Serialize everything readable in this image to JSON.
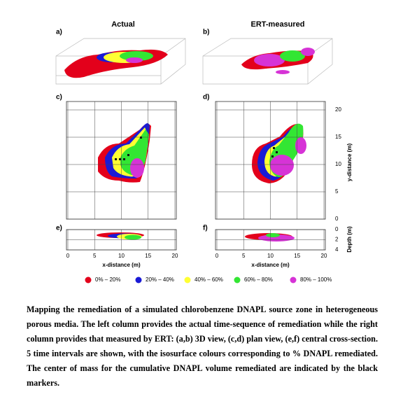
{
  "columns": {
    "left": "Actual",
    "right": "ERT-measured"
  },
  "panels": {
    "a": "a)",
    "b": "b)",
    "c": "c)",
    "d": "d)",
    "e": "e)",
    "f": "f)"
  },
  "axes": {
    "x_label": "x-distance (m)",
    "x_ticks": [
      0,
      5,
      10,
      15,
      20
    ],
    "y_label": "y-distance (m)",
    "y_ticks": [
      0,
      5,
      10,
      15,
      20
    ],
    "depth_label": "Depth (m)",
    "depth_ticks": [
      0,
      2,
      4
    ]
  },
  "legend": [
    {
      "label": "0% – 20%",
      "color": "#e3001b"
    },
    {
      "label": "20% – 40%",
      "color": "#1a1ad6"
    },
    {
      "label": "40% – 60%",
      "color": "#ffff33"
    },
    {
      "label": "60% – 80%",
      "color": "#33e633"
    },
    {
      "label": "80% – 100%",
      "color": "#d633d6"
    }
  ],
  "caption": "Mapping the remediation of a simulated chlorobenzene DNAPL source zone in heterogeneous porous media. The left column provides the actual time-sequence of remediation while the right column provides that measured by ERT: (a,b) 3D view, (c,d) plan view, (e,f) central cross-section. 5 time intervals are shown, with the isosurface colours corresponding to % DNAPL remediated. The center of mass for the cumulative DNAPL volume remediated are indicated by the black markers."
}
